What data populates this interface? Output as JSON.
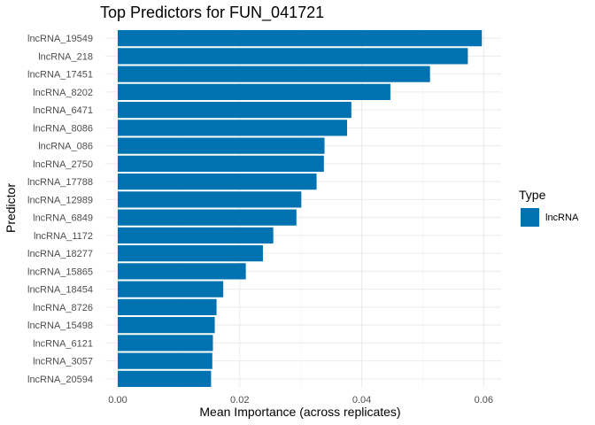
{
  "chart_data": {
    "type": "bar",
    "orientation": "horizontal",
    "title": "Top Predictors for FUN_041721",
    "xlabel": "Mean Importance (across replicates)",
    "ylabel": "Predictor",
    "xlim": [
      0,
      0.062
    ],
    "xticks": [
      "0.00",
      "0.02",
      "0.04",
      "0.06"
    ],
    "grid": true,
    "legend": {
      "title": "Type",
      "position": "right",
      "entries": [
        {
          "label": "lncRNA",
          "color": "#0072B2"
        }
      ]
    },
    "categories": [
      "lncRNA_19549",
      "lncRNA_218",
      "lncRNA_17451",
      "lncRNA_8202",
      "lncRNA_6471",
      "lncRNA_8086",
      "lncRNA_086",
      "lncRNA_2750",
      "lncRNA_17788",
      "lncRNA_12989",
      "lncRNA_6849",
      "lncRNA_1172",
      "lncRNA_18277",
      "lncRNA_15865",
      "lncRNA_18454",
      "lncRNA_8726",
      "lncRNA_15498",
      "lncRNA_6121",
      "lncRNA_3057",
      "lncRNA_20594"
    ],
    "series": [
      {
        "name": "lncRNA",
        "color": "#0072B2",
        "values": [
          0.0597,
          0.0574,
          0.0512,
          0.0447,
          0.0383,
          0.0376,
          0.0339,
          0.0338,
          0.0326,
          0.0301,
          0.0293,
          0.0255,
          0.0238,
          0.021,
          0.0173,
          0.0162,
          0.0159,
          0.0156,
          0.0155,
          0.0153
        ]
      }
    ]
  }
}
